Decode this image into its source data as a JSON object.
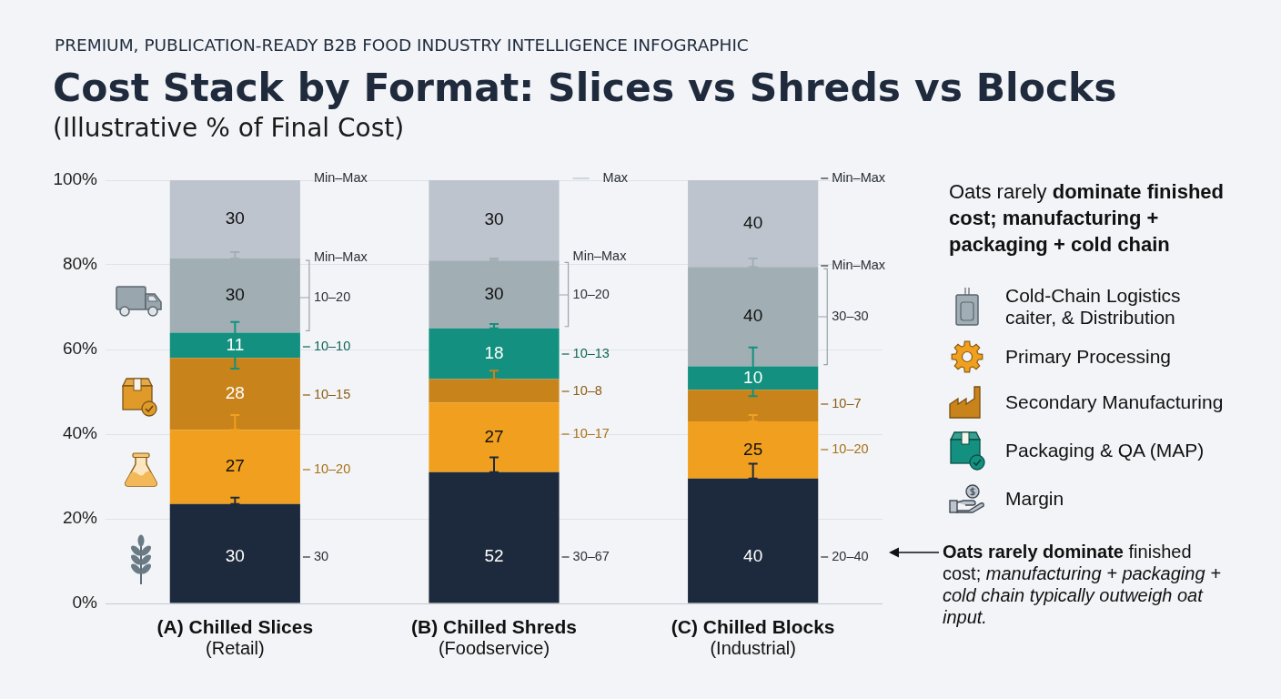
{
  "chart_data": {
    "type": "bar",
    "title": "Cost Stack by Format: Slices vs Shreds vs Blocks",
    "subtitle": "(Illustrative % of Final Cost)",
    "categories": [
      "(A) Chilled Slices\n(Retail)",
      "(B) Chilled Shreds\n(Foodservice)",
      "(C) Chilled Blocks\n(Industrial)"
    ],
    "stacked": true,
    "series": [
      {
        "color": "#1d2a3d",
        "values": [
          23.5,
          31,
          29.5
        ],
        "errors": [
          [
            23.5,
            25
          ],
          [
            31,
            34.5
          ],
          [
            29.5,
            33
          ]
        ]
      },
      {
        "name": "Primary Processing",
        "color": "#f0a01e",
        "values": [
          17.5,
          16.5,
          13.5
        ],
        "errors": [
          [
            41,
            44.5
          ],
          null,
          [
            43,
            44.5
          ]
        ]
      },
      {
        "name": "Secondary Manufacturing",
        "color": "#c8841a",
        "values": [
          17,
          5.5,
          7.5
        ],
        "errors": [
          null,
          [
            53,
            55
          ],
          null
        ]
      },
      {
        "name": "Packaging & QA (MAP)",
        "color": "#13907f",
        "values": [
          6,
          12,
          5.5
        ],
        "errors": [
          [
            55.5,
            66.5
          ],
          [
            65,
            66
          ],
          [
            49,
            60.5
          ]
        ]
      },
      {
        "name": "Cold-Chain Logistics\ncaiter, & Distribution",
        "color": "#a1aeb4",
        "values": [
          17.5,
          16,
          23.5
        ],
        "errors": [
          [
            81.5,
            83
          ],
          [
            81,
            81.5
          ],
          [
            79.5,
            81.5
          ]
        ]
      },
      {
        "name": "Margin",
        "color": "#bdc4cd",
        "values": [
          18.5,
          19,
          20.5
        ]
      }
    ],
    "ylim": [
      0,
      100
    ],
    "yticks": [
      {
        "value": 0,
        "label": "0%"
      },
      {
        "value": 20,
        "label": "20%"
      },
      {
        "value": 40,
        "label": "40%"
      },
      {
        "value": 60,
        "label": "60%"
      },
      {
        "value": 80,
        "label": "80%"
      },
      {
        "value": 100,
        "label": "100%"
      }
    ],
    "grid": "y",
    "legend": "right",
    "legend_title": "Oats rarely dominate finished cost; manufacturing + packaging + cold chain",
    "annotations": [
      "PREMIUM, PUBLICATION-READY B2B FOOD INDUSTRY INTELLIGENCE INFOGRAPHIC",
      "30",
      "30",
      "11",
      "28",
      "27",
      "30",
      "30",
      "30",
      "18",
      "27",
      "52",
      "40",
      "40",
      "10",
      "25",
      "40",
      "Min–Max",
      "Min–Max",
      "10–20",
      "10–10",
      "10–15",
      "10–20",
      "30",
      "Max",
      "Min–Max",
      "10–20",
      "10–13",
      "10–8",
      "10–17",
      "30–67",
      "Min–Max",
      "Min–Max",
      "30–30",
      "10–7",
      "10–20",
      "20–40",
      "Oats rarely dominate finished cost; manufacturing + packaging + cold chain typically outweigh oat input."
    ]
  }
}
